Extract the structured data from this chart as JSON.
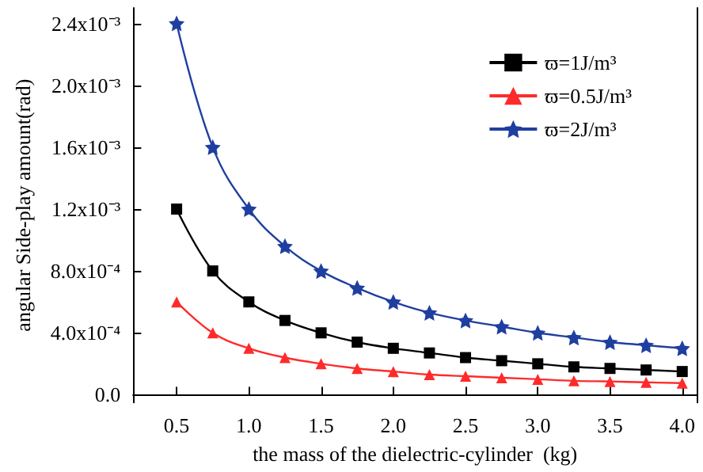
{
  "chart_data": {
    "type": "line",
    "xlabel": "the mass of the dielectric-cylinder  (kg)",
    "ylabel": "angular Side-play amount(rad)",
    "x": [
      0.5,
      0.75,
      1.0,
      1.25,
      1.5,
      1.75,
      2.0,
      2.25,
      2.5,
      2.75,
      3.0,
      3.25,
      3.5,
      3.75,
      4.0
    ],
    "series": [
      {
        "name": "ϖ=1J/m³",
        "color": "#000000",
        "marker": "square",
        "values": [
          0.0012,
          0.0008,
          0.0006,
          0.00048,
          0.0004,
          0.00034,
          0.0003,
          0.00027,
          0.00024,
          0.00022,
          0.0002,
          0.00018,
          0.00017,
          0.00016,
          0.00015
        ]
      },
      {
        "name": "ϖ=0.5J/m³",
        "color": "#ff2a2a",
        "marker": "triangle",
        "values": [
          0.0006,
          0.0004,
          0.0003,
          0.00024,
          0.0002,
          0.00017,
          0.00015,
          0.00013,
          0.00012,
          0.00011,
          0.0001,
          9e-05,
          8.6e-05,
          8e-05,
          7.5e-05
        ]
      },
      {
        "name": "ϖ=2J/m³",
        "color": "#1f3fa0",
        "marker": "star",
        "values": [
          0.0024,
          0.0016,
          0.0012,
          0.00096,
          0.0008,
          0.00069,
          0.0006,
          0.00053,
          0.00048,
          0.00044,
          0.0004,
          0.00037,
          0.00034,
          0.00032,
          0.0003
        ]
      }
    ],
    "xlim": [
      0.2,
      4.1
    ],
    "xticks": [
      0.5,
      {
        "value": 1,
        "label": "1.0"
      },
      1.5,
      {
        "value": 2,
        "label": "2.0"
      },
      2.5,
      {
        "value": 3,
        "label": "3.0"
      },
      3.5,
      {
        "value": 4,
        "label": "4.0"
      }
    ],
    "ylim": [
      -5e-05,
      0.0025
    ],
    "yticks": [
      {
        "value": 0,
        "label": "0.0"
      },
      {
        "value": 0.0004,
        "label": "4.0x10⁻⁴"
      },
      {
        "value": 0.0008,
        "label": "8.0x10⁻⁴"
      },
      {
        "value": 0.0012,
        "label": "1.2x10⁻³"
      },
      {
        "value": 0.0016,
        "label": "1.6x10⁻³"
      },
      {
        "value": 0.002,
        "label": "2.0x10⁻³"
      },
      {
        "value": 0.0024,
        "label": "2.4x10⁻³"
      }
    ],
    "grid": false,
    "legend": "top right",
    "line_style": "solid"
  }
}
